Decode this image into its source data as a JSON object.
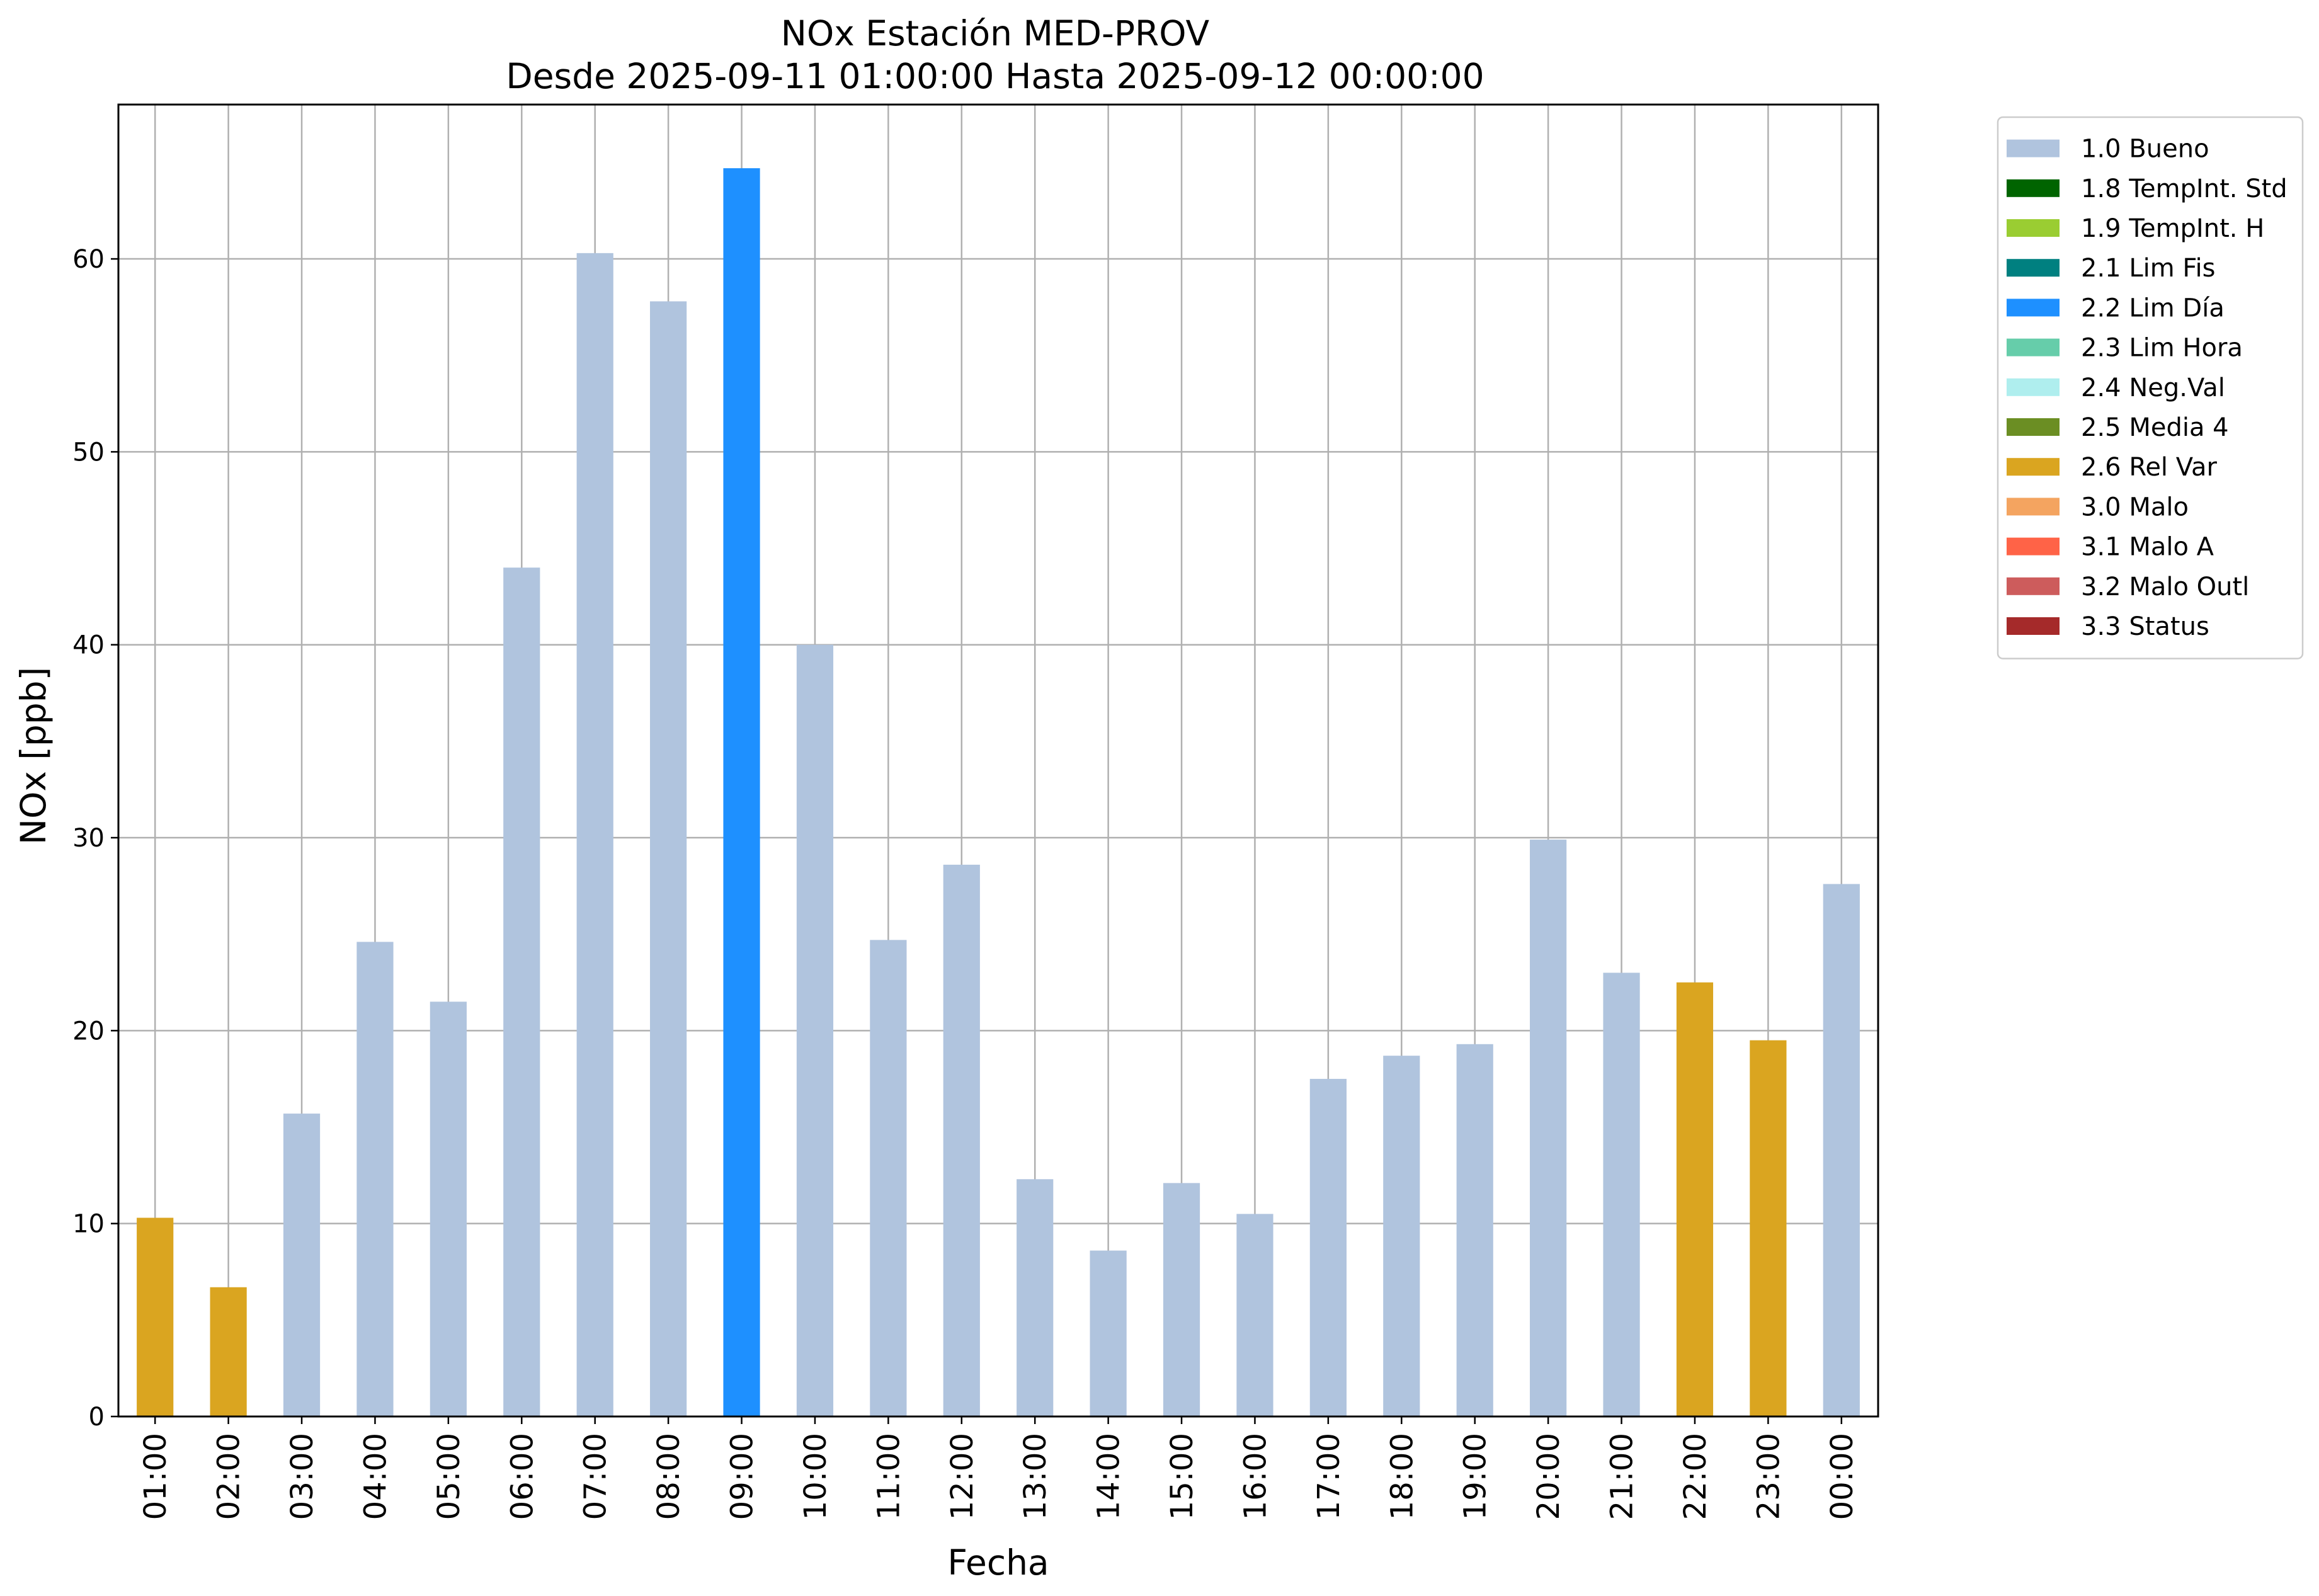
{
  "chart_data": {
    "type": "bar",
    "title": "NOx Estación MED-PROV",
    "subtitle": "Desde 2025-09-11 01:00:00 Hasta 2025-09-12 00:00:00",
    "xlabel": "Fecha",
    "ylabel": "NOx [ppb]",
    "ylim": [
      0,
      68
    ],
    "yticks": [
      0,
      10,
      20,
      30,
      40,
      50,
      60
    ],
    "grid": true,
    "legend_position": "outside-top-right",
    "categories": [
      "01:00",
      "02:00",
      "03:00",
      "04:00",
      "05:00",
      "06:00",
      "07:00",
      "08:00",
      "09:00",
      "10:00",
      "11:00",
      "12:00",
      "13:00",
      "14:00",
      "15:00",
      "16:00",
      "17:00",
      "18:00",
      "19:00",
      "20:00",
      "21:00",
      "22:00",
      "23:00",
      "00:00"
    ],
    "values": [
      10.3,
      6.7,
      15.7,
      24.6,
      21.5,
      44.0,
      60.3,
      57.8,
      64.7,
      40.0,
      24.7,
      28.6,
      12.3,
      8.6,
      12.1,
      10.5,
      17.5,
      18.7,
      19.3,
      29.9,
      23.0,
      22.5,
      19.5,
      27.6
    ],
    "flags": [
      "2.6 Rel Var",
      "2.6 Rel Var",
      "1.0 Bueno",
      "1.0 Bueno",
      "1.0 Bueno",
      "1.0 Bueno",
      "1.0 Bueno",
      "1.0 Bueno",
      "2.2 Lim Día",
      "1.0 Bueno",
      "1.0 Bueno",
      "1.0 Bueno",
      "1.0 Bueno",
      "1.0 Bueno",
      "1.0 Bueno",
      "1.0 Bueno",
      "1.0 Bueno",
      "1.0 Bueno",
      "1.0 Bueno",
      "1.0 Bueno",
      "1.0 Bueno",
      "2.6 Rel Var",
      "2.6 Rel Var",
      "1.0 Bueno"
    ],
    "legend": [
      {
        "label": "1.0 Bueno",
        "color": "#b0c4de"
      },
      {
        "label": "1.8 TempInt. Std",
        "color": "#006400"
      },
      {
        "label": "1.9 TempInt. H",
        "color": "#9acd32"
      },
      {
        "label": "2.1 Lim Fis",
        "color": "#008080"
      },
      {
        "label": "2.2 Lim Día",
        "color": "#1e90ff"
      },
      {
        "label": "2.3 Lim Hora",
        "color": "#66cdaa"
      },
      {
        "label": "2.4 Neg.Val",
        "color": "#afeeee"
      },
      {
        "label": "2.5 Media 4",
        "color": "#6b8e23"
      },
      {
        "label": "2.6 Rel Var",
        "color": "#daa520"
      },
      {
        "label": "3.0 Malo",
        "color": "#f4a460"
      },
      {
        "label": "3.1 Malo A",
        "color": "#ff6347"
      },
      {
        "label": "3.2 Malo Outl",
        "color": "#cd5c5c"
      },
      {
        "label": "3.3 Status",
        "color": "#a52a2a"
      }
    ]
  }
}
